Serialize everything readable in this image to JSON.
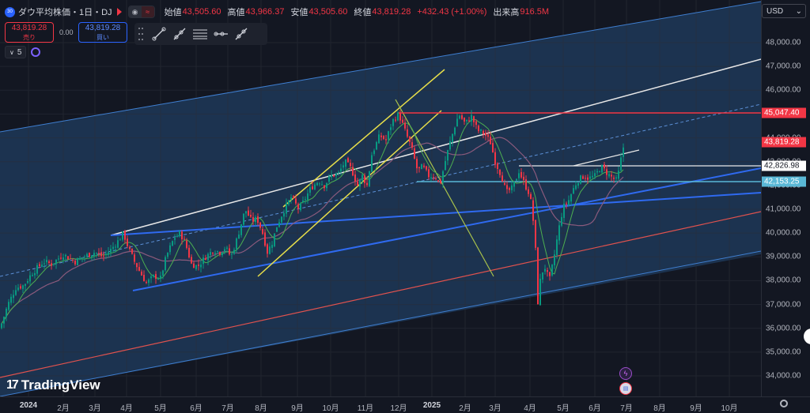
{
  "header": {
    "symbol_icon": "30",
    "symbol": "ダウ平均株価・1日・DJ",
    "open_label": "始値",
    "open": "43,505.60",
    "high_label": "高値",
    "high": "43,966.37",
    "low_label": "安値",
    "low": "43,505.60",
    "close_label": "終値",
    "close": "43,819.28",
    "change": "+432.43 (+1.00%)",
    "volume_label": "出来高",
    "volume": "916.5M"
  },
  "trade": {
    "sell_price": "43,819.28",
    "sell_label": "売り",
    "spread": "0.00",
    "buy_price": "43,819.28",
    "buy_label": "買い"
  },
  "timeframe": {
    "value": "5",
    "chevron": "∨"
  },
  "toolbar": {
    "icons": [
      "trend-line-icon",
      "ray-icon",
      "parallel-channel-icon",
      "horizontal-ray-icon",
      "extended-line-icon"
    ]
  },
  "currency": {
    "label": "USD",
    "chevron": "⌄"
  },
  "chart_data": {
    "type": "candlestick",
    "y_axis": {
      "range": [
        33500,
        49300
      ],
      "ticks": [
        "48,000.00",
        "47,000.00",
        "46,000.00",
        "45,000.00",
        "44,000.00",
        "43,000.00",
        "42,000.00",
        "41,000.00",
        "40,000.00",
        "39,000.00",
        "38,000.00",
        "37,000.00",
        "36,000.00",
        "35,000.00",
        "34,000.00"
      ]
    },
    "x_axis": {
      "ticks": [
        "2024",
        "2月",
        "3月",
        "4月",
        "5月",
        "6月",
        "7月",
        "8月",
        "9月",
        "10月",
        "11月",
        "12月",
        "2025",
        "2月",
        "3月",
        "4月",
        "5月",
        "6月",
        "7月",
        "8月",
        "9月",
        "10月"
      ],
      "bold": [
        "2024",
        "2025"
      ]
    },
    "price_tags": [
      {
        "value": "45,047.40",
        "color": "#f23645"
      },
      {
        "value": "43,819.28",
        "color": "#f23645"
      },
      {
        "value": "42,826.98",
        "color": "#ffffff"
      },
      {
        "value": "42,153.25",
        "color": "#5ab8d6"
      }
    ],
    "price_path": [
      [
        0,
        36000
      ],
      [
        10,
        37000
      ],
      [
        20,
        37700
      ],
      [
        30,
        37800
      ],
      [
        40,
        38300
      ],
      [
        55,
        38800
      ],
      [
        65,
        38700
      ],
      [
        80,
        39100
      ],
      [
        95,
        38800
      ],
      [
        105,
        39000
      ],
      [
        120,
        39200
      ],
      [
        130,
        39000
      ],
      [
        140,
        39300
      ],
      [
        150,
        39700
      ],
      [
        156,
        40000
      ],
      [
        162,
        39400
      ],
      [
        170,
        38800
      ],
      [
        178,
        38300
      ],
      [
        185,
        37900
      ],
      [
        195,
        38200
      ],
      [
        203,
        38100
      ],
      [
        210,
        39000
      ],
      [
        220,
        39800
      ],
      [
        228,
        40000
      ],
      [
        235,
        39500
      ],
      [
        242,
        38700
      ],
      [
        250,
        38600
      ],
      [
        260,
        39000
      ],
      [
        270,
        39300
      ],
      [
        278,
        39200
      ],
      [
        285,
        39400
      ],
      [
        292,
        39000
      ],
      [
        300,
        39800
      ],
      [
        310,
        41000
      ],
      [
        318,
        40500
      ],
      [
        325,
        40600
      ],
      [
        332,
        40000
      ],
      [
        338,
        39200
      ],
      [
        344,
        39600
      ],
      [
        350,
        40300
      ],
      [
        358,
        40900
      ],
      [
        368,
        41500
      ],
      [
        378,
        41000
      ],
      [
        385,
        41400
      ],
      [
        393,
        41900
      ],
      [
        403,
        42200
      ],
      [
        410,
        42000
      ],
      [
        418,
        42400
      ],
      [
        428,
        42500
      ],
      [
        436,
        43000
      ],
      [
        444,
        42700
      ],
      [
        452,
        42000
      ],
      [
        458,
        42400
      ],
      [
        464,
        42000
      ],
      [
        470,
        43300
      ],
      [
        480,
        44100
      ],
      [
        488,
        43900
      ],
      [
        496,
        44700
      ],
      [
        504,
        45000
      ],
      [
        512,
        44300
      ],
      [
        520,
        43600
      ],
      [
        528,
        42600
      ],
      [
        534,
        42800
      ],
      [
        542,
        42400
      ],
      [
        550,
        42400
      ],
      [
        556,
        42000
      ],
      [
        562,
        42900
      ],
      [
        568,
        43700
      ],
      [
        575,
        44500
      ],
      [
        580,
        45000
      ],
      [
        588,
        44600
      ],
      [
        596,
        44900
      ],
      [
        604,
        44300
      ],
      [
        612,
        44200
      ],
      [
        620,
        43800
      ],
      [
        626,
        43000
      ],
      [
        634,
        42400
      ],
      [
        640,
        41700
      ],
      [
        648,
        41900
      ],
      [
        656,
        42600
      ],
      [
        664,
        42000
      ],
      [
        670,
        41600
      ],
      [
        676,
        40000
      ],
      [
        680,
        37100
      ],
      [
        684,
        38300
      ],
      [
        690,
        38600
      ],
      [
        694,
        37900
      ],
      [
        700,
        38900
      ],
      [
        706,
        40100
      ],
      [
        712,
        41100
      ],
      [
        718,
        41300
      ],
      [
        724,
        41800
      ],
      [
        730,
        42200
      ],
      [
        738,
        42400
      ],
      [
        744,
        42300
      ],
      [
        752,
        42400
      ],
      [
        760,
        42800
      ],
      [
        768,
        42500
      ],
      [
        775,
        42300
      ],
      [
        780,
        42200
      ],
      [
        784,
        42900
      ],
      [
        787,
        43500
      ],
      [
        790,
        43820
      ]
    ],
    "moving_averages": [
      "ma-short",
      "ma-long"
    ],
    "drawings": [
      "upper-channel-line",
      "lower-channel-line",
      "center-channel-line",
      "red-trend-line",
      "white-trend-line",
      "blue-trend-line-1",
      "blue-trend-line-2",
      "yellow-channel-upper",
      "yellow-channel-lower",
      "green-line",
      "resistance-45047",
      "level-42827",
      "level-42153"
    ]
  },
  "events": [
    {
      "name": "earnings-event-icon",
      "glyph": "ϟ"
    },
    {
      "name": "dividend-event-icon",
      "glyph": "●"
    }
  ],
  "branding": {
    "logo": "TradingView"
  }
}
